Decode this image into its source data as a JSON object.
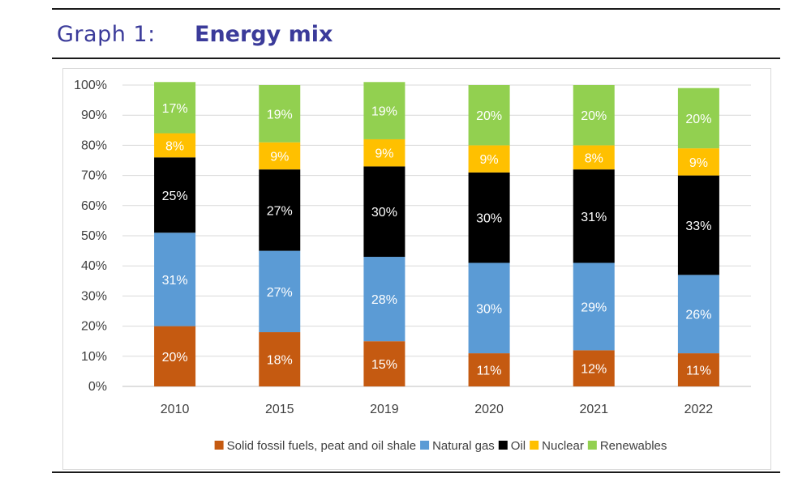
{
  "header": {
    "graph_label": "Graph 1:",
    "title": "Energy mix"
  },
  "chart_data": {
    "type": "bar",
    "stacked": true,
    "title": "Energy mix",
    "categories": [
      "2010",
      "2015",
      "2019",
      "2020",
      "2021",
      "2022"
    ],
    "ylim": [
      0,
      100
    ],
    "y_ticks": [
      "0%",
      "10%",
      "20%",
      "30%",
      "40%",
      "50%",
      "60%",
      "70%",
      "80%",
      "90%",
      "100%"
    ],
    "grid": true,
    "legend_position": "bottom",
    "series": [
      {
        "name": "Solid fossil fuels, peat and oil shale",
        "color": "#c55a11",
        "label_color": "#ffffff",
        "values": [
          20,
          18,
          15,
          11,
          12,
          11
        ],
        "labels": [
          "20%",
          "18%",
          "15%",
          "11%",
          "12%",
          "11%"
        ]
      },
      {
        "name": "Natural gas",
        "color": "#5b9bd5",
        "label_color": "#ffffff",
        "values": [
          31,
          27,
          28,
          30,
          29,
          26
        ],
        "labels": [
          "31%",
          "27%",
          "28%",
          "30%",
          "29%",
          "26%"
        ]
      },
      {
        "name": "Oil",
        "color": "#000000",
        "label_color": "#ffffff",
        "values": [
          25,
          27,
          30,
          30,
          31,
          33
        ],
        "labels": [
          "25%",
          "27%",
          "30%",
          "30%",
          "31%",
          "33%"
        ]
      },
      {
        "name": "Nuclear",
        "color": "#ffc000",
        "label_color": "#ffffff",
        "values": [
          8,
          9,
          9,
          9,
          8,
          9
        ],
        "labels": [
          "8%",
          "9%",
          "9%",
          "9%",
          "8%",
          "9%"
        ]
      },
      {
        "name": "Renewables",
        "color": "#92d050",
        "label_color": "#ffffff",
        "values": [
          17,
          19,
          19,
          20,
          20,
          20
        ],
        "labels": [
          "17%",
          "19%",
          "19%",
          "20%",
          "20%",
          "20%"
        ]
      }
    ]
  }
}
